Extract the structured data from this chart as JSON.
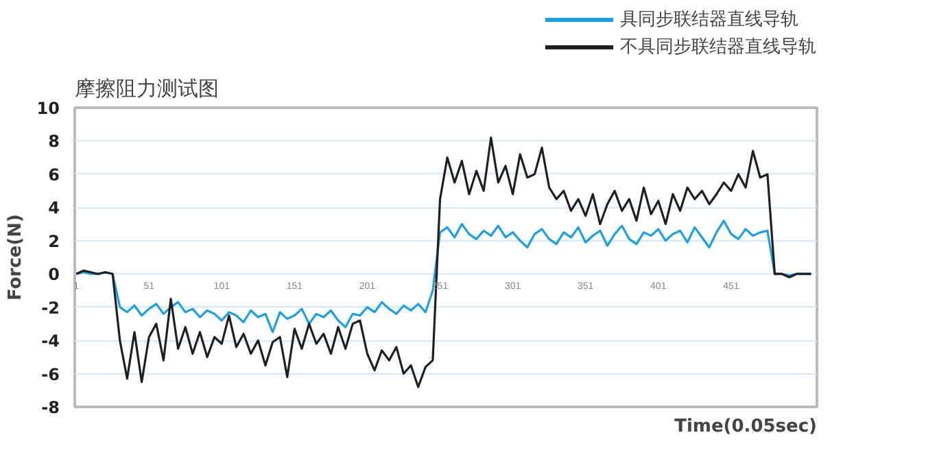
{
  "chart_data": {
    "type": "line",
    "title": "摩擦阻力测试图",
    "xlabel": "Time(0.05sec)",
    "ylabel": "Force(N)",
    "x": [
      1,
      6,
      11,
      16,
      21,
      26,
      31,
      36,
      41,
      46,
      51,
      56,
      61,
      66,
      71,
      76,
      81,
      86,
      91,
      96,
      101,
      106,
      111,
      116,
      121,
      126,
      131,
      136,
      141,
      146,
      151,
      156,
      161,
      166,
      171,
      176,
      181,
      186,
      191,
      196,
      201,
      206,
      211,
      216,
      221,
      226,
      231,
      236,
      241,
      246,
      251,
      256,
      261,
      266,
      271,
      276,
      281,
      286,
      291,
      296,
      301,
      306,
      311,
      316,
      321,
      326,
      331,
      336,
      341,
      346,
      351,
      356,
      361,
      366,
      371,
      376,
      381,
      386,
      391,
      396,
      401,
      406,
      411,
      416,
      421,
      426,
      431,
      436,
      441,
      446,
      451,
      456,
      461,
      466,
      471,
      476,
      481,
      486,
      491,
      496,
      501,
      506
    ],
    "series": [
      {
        "name": "具同步联结器直线导轨",
        "color": "#1ca0e0",
        "values": [
          0,
          0.1,
          0,
          0,
          0.1,
          0,
          -2,
          -2.3,
          -1.9,
          -2.5,
          -2.1,
          -1.8,
          -2.4,
          -2.0,
          -1.7,
          -2.3,
          -2.1,
          -2.6,
          -2.2,
          -2.4,
          -2.8,
          -2.3,
          -2.5,
          -2.9,
          -2.2,
          -2.6,
          -2.4,
          -3.5,
          -2.3,
          -2.7,
          -2.5,
          -2.1,
          -3.0,
          -2.4,
          -2.6,
          -2.2,
          -2.8,
          -3.2,
          -2.4,
          -2.5,
          -2.0,
          -2.3,
          -1.7,
          -2.1,
          -2.4,
          -1.9,
          -2.2,
          -1.8,
          -2.3,
          -1.0,
          2.5,
          2.8,
          2.2,
          3.0,
          2.4,
          2.1,
          2.6,
          2.3,
          2.9,
          2.2,
          2.5,
          2.0,
          1.6,
          2.4,
          2.7,
          2.1,
          1.8,
          2.5,
          2.2,
          2.8,
          1.9,
          2.3,
          2.6,
          1.7,
          2.4,
          2.9,
          2.1,
          1.8,
          2.5,
          2.3,
          2.7,
          2.0,
          2.4,
          2.6,
          1.9,
          2.8,
          2.2,
          1.6,
          2.5,
          3.2,
          2.4,
          2.1,
          2.7,
          2.3,
          2.5,
          2.6,
          0,
          0,
          -0.1,
          0,
          0,
          0
        ]
      },
      {
        "name": "不具同步联结器直线导轨",
        "color": "#231f20",
        "values": [
          0,
          0.2,
          0.1,
          0,
          0.1,
          0,
          -4.0,
          -6.3,
          -3.5,
          -6.5,
          -3.8,
          -3.0,
          -5.2,
          -1.5,
          -4.5,
          -3.2,
          -4.8,
          -3.5,
          -5.0,
          -3.8,
          -4.2,
          -2.5,
          -4.4,
          -3.6,
          -4.8,
          -4.0,
          -5.5,
          -4.1,
          -3.8,
          -6.2,
          -3.3,
          -4.5,
          -3.0,
          -4.2,
          -3.6,
          -4.8,
          -3.2,
          -4.5,
          -3.0,
          -2.8,
          -4.8,
          -5.8,
          -4.6,
          -5.2,
          -4.4,
          -6.0,
          -5.5,
          -6.8,
          -5.6,
          -5.2,
          4.5,
          7.0,
          5.5,
          6.8,
          4.8,
          6.2,
          5.0,
          8.2,
          5.5,
          6.5,
          4.8,
          7.2,
          5.8,
          6.0,
          7.6,
          5.2,
          4.5,
          5.0,
          3.8,
          4.5,
          3.5,
          4.8,
          3.0,
          4.2,
          5.0,
          3.8,
          4.5,
          3.2,
          5.2,
          3.6,
          4.4,
          3.0,
          4.8,
          3.8,
          5.2,
          4.5,
          5.0,
          4.2,
          4.8,
          5.5,
          5.0,
          6.0,
          5.2,
          7.4,
          5.8,
          6.0,
          0,
          0,
          -0.2,
          0,
          0,
          0
        ]
      }
    ],
    "xlim": [
      0,
      510
    ],
    "ylim": [
      -8,
      10
    ],
    "xticks": [
      1,
      51,
      101,
      151,
      201,
      251,
      301,
      351,
      401,
      451
    ],
    "yticks": [
      -8,
      -6,
      -4,
      -2,
      0,
      2,
      4,
      6,
      8,
      10
    ],
    "grid": "y",
    "legend": "top right",
    "marker": "none",
    "line_style": "solid"
  }
}
